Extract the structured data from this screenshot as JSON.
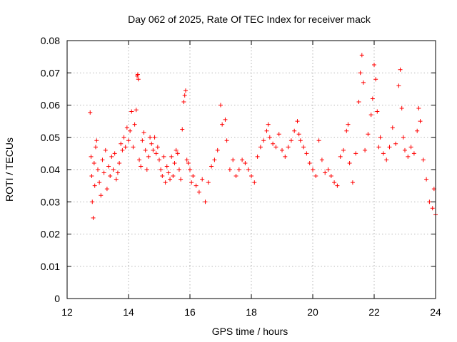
{
  "chart_data": {
    "type": "scatter",
    "title": "Day 062 of 2025, Rate Of TEC Index for receiver mack",
    "xlabel": "GPS time / hours",
    "ylabel": "ROTI / TECUs",
    "xlim": [
      12,
      24
    ],
    "ylim": [
      0,
      0.08
    ],
    "x_ticks": [
      12,
      14,
      16,
      18,
      20,
      22,
      24
    ],
    "x_tick_labels": [
      "12",
      "14",
      "16",
      "18",
      "20",
      "22",
      "24"
    ],
    "y_ticks": [
      0,
      0.01,
      0.02,
      0.03,
      0.04,
      0.05,
      0.06,
      0.07,
      0.08
    ],
    "y_tick_labels": [
      "0",
      "0.01",
      "0.02",
      "0.03",
      "0.04",
      "0.05",
      "0.06",
      "0.07",
      "0.08"
    ],
    "grid": true,
    "marker": "plus",
    "color": "#ff0000",
    "series": [
      {
        "values_description_only_for_generation": "",
        "points": [
          [
            12.75,
            0.0577
          ],
          [
            12.78,
            0.044
          ],
          [
            12.8,
            0.038
          ],
          [
            12.82,
            0.03
          ],
          [
            12.85,
            0.025
          ],
          [
            12.88,
            0.042
          ],
          [
            12.9,
            0.035
          ],
          [
            12.93,
            0.047
          ],
          [
            12.96,
            0.049
          ],
          [
            13.0,
            0.04
          ],
          [
            13.05,
            0.036
          ],
          [
            13.1,
            0.032
          ],
          [
            13.15,
            0.043
          ],
          [
            13.2,
            0.039
          ],
          [
            13.25,
            0.046
          ],
          [
            13.3,
            0.034
          ],
          [
            13.35,
            0.041
          ],
          [
            13.4,
            0.038
          ],
          [
            13.45,
            0.044
          ],
          [
            13.5,
            0.04
          ],
          [
            13.55,
            0.045
          ],
          [
            13.6,
            0.037
          ],
          [
            13.65,
            0.039
          ],
          [
            13.7,
            0.042
          ],
          [
            13.75,
            0.048
          ],
          [
            13.8,
            0.046
          ],
          [
            13.85,
            0.05
          ],
          [
            13.9,
            0.047
          ],
          [
            13.95,
            0.053
          ],
          [
            14.0,
            0.049
          ],
          [
            14.05,
            0.052
          ],
          [
            14.1,
            0.058
          ],
          [
            14.15,
            0.047
          ],
          [
            14.2,
            0.054
          ],
          [
            14.25,
            0.0585
          ],
          [
            14.28,
            0.069
          ],
          [
            14.3,
            0.0695
          ],
          [
            14.32,
            0.068
          ],
          [
            14.35,
            0.043
          ],
          [
            14.4,
            0.041
          ],
          [
            14.45,
            0.049
          ],
          [
            14.5,
            0.0515
          ],
          [
            14.55,
            0.046
          ],
          [
            14.6,
            0.04
          ],
          [
            14.65,
            0.044
          ],
          [
            14.7,
            0.05
          ],
          [
            14.75,
            0.048
          ],
          [
            14.8,
            0.046
          ],
          [
            14.85,
            0.05
          ],
          [
            14.9,
            0.045
          ],
          [
            14.95,
            0.047
          ],
          [
            15.0,
            0.043
          ],
          [
            15.05,
            0.04
          ],
          [
            15.1,
            0.038
          ],
          [
            15.15,
            0.044
          ],
          [
            15.2,
            0.036
          ],
          [
            15.25,
            0.041
          ],
          [
            15.3,
            0.039
          ],
          [
            15.35,
            0.037
          ],
          [
            15.4,
            0.044
          ],
          [
            15.45,
            0.038
          ],
          [
            15.5,
            0.042
          ],
          [
            15.55,
            0.046
          ],
          [
            15.6,
            0.045
          ],
          [
            15.65,
            0.04
          ],
          [
            15.7,
            0.037
          ],
          [
            15.75,
            0.0525
          ],
          [
            15.8,
            0.061
          ],
          [
            15.83,
            0.063
          ],
          [
            15.86,
            0.0645
          ],
          [
            15.9,
            0.043
          ],
          [
            15.95,
            0.042
          ],
          [
            16.0,
            0.04
          ],
          [
            16.05,
            0.036
          ],
          [
            16.1,
            0.038
          ],
          [
            16.2,
            0.035
          ],
          [
            16.3,
            0.033
          ],
          [
            16.4,
            0.037
          ],
          [
            16.5,
            0.03
          ],
          [
            16.6,
            0.036
          ],
          [
            16.7,
            0.041
          ],
          [
            16.8,
            0.043
          ],
          [
            16.9,
            0.046
          ],
          [
            17.0,
            0.06
          ],
          [
            17.05,
            0.054
          ],
          [
            17.15,
            0.0555
          ],
          [
            17.2,
            0.049
          ],
          [
            17.3,
            0.04
          ],
          [
            17.4,
            0.043
          ],
          [
            17.5,
            0.038
          ],
          [
            17.6,
            0.04
          ],
          [
            17.7,
            0.043
          ],
          [
            17.8,
            0.042
          ],
          [
            17.9,
            0.04
          ],
          [
            18.0,
            0.038
          ],
          [
            18.1,
            0.036
          ],
          [
            18.2,
            0.044
          ],
          [
            18.3,
            0.047
          ],
          [
            18.4,
            0.049
          ],
          [
            18.5,
            0.052
          ],
          [
            18.55,
            0.054
          ],
          [
            18.6,
            0.05
          ],
          [
            18.7,
            0.048
          ],
          [
            18.8,
            0.047
          ],
          [
            18.9,
            0.051
          ],
          [
            19.0,
            0.046
          ],
          [
            19.1,
            0.044
          ],
          [
            19.2,
            0.047
          ],
          [
            19.3,
            0.049
          ],
          [
            19.4,
            0.052
          ],
          [
            19.5,
            0.055
          ],
          [
            19.55,
            0.051
          ],
          [
            19.6,
            0.049
          ],
          [
            19.7,
            0.047
          ],
          [
            19.8,
            0.045
          ],
          [
            19.9,
            0.042
          ],
          [
            20.0,
            0.04
          ],
          [
            20.1,
            0.038
          ],
          [
            20.2,
            0.049
          ],
          [
            20.3,
            0.043
          ],
          [
            20.4,
            0.039
          ],
          [
            20.5,
            0.04
          ],
          [
            20.6,
            0.038
          ],
          [
            20.7,
            0.036
          ],
          [
            20.8,
            0.035
          ],
          [
            20.9,
            0.044
          ],
          [
            21.0,
            0.046
          ],
          [
            21.1,
            0.052
          ],
          [
            21.15,
            0.054
          ],
          [
            21.2,
            0.042
          ],
          [
            21.3,
            0.036
          ],
          [
            21.4,
            0.045
          ],
          [
            21.5,
            0.061
          ],
          [
            21.55,
            0.07
          ],
          [
            21.6,
            0.0755
          ],
          [
            21.65,
            0.067
          ],
          [
            21.7,
            0.046
          ],
          [
            21.8,
            0.051
          ],
          [
            21.9,
            0.057
          ],
          [
            21.95,
            0.062
          ],
          [
            22.0,
            0.0725
          ],
          [
            22.05,
            0.068
          ],
          [
            22.1,
            0.058
          ],
          [
            22.15,
            0.047
          ],
          [
            22.2,
            0.05
          ],
          [
            22.3,
            0.045
          ],
          [
            22.4,
            0.043
          ],
          [
            22.5,
            0.047
          ],
          [
            22.6,
            0.053
          ],
          [
            22.7,
            0.048
          ],
          [
            22.8,
            0.066
          ],
          [
            22.85,
            0.071
          ],
          [
            22.9,
            0.059
          ],
          [
            22.95,
            0.05
          ],
          [
            23.0,
            0.046
          ],
          [
            23.1,
            0.044
          ],
          [
            23.2,
            0.047
          ],
          [
            23.3,
            0.045
          ],
          [
            23.4,
            0.052
          ],
          [
            23.45,
            0.059
          ],
          [
            23.5,
            0.055
          ],
          [
            23.6,
            0.043
          ],
          [
            23.7,
            0.037
          ],
          [
            23.8,
            0.03
          ],
          [
            23.9,
            0.028
          ],
          [
            23.95,
            0.034
          ],
          [
            24.0,
            0.026
          ]
        ]
      }
    ]
  }
}
